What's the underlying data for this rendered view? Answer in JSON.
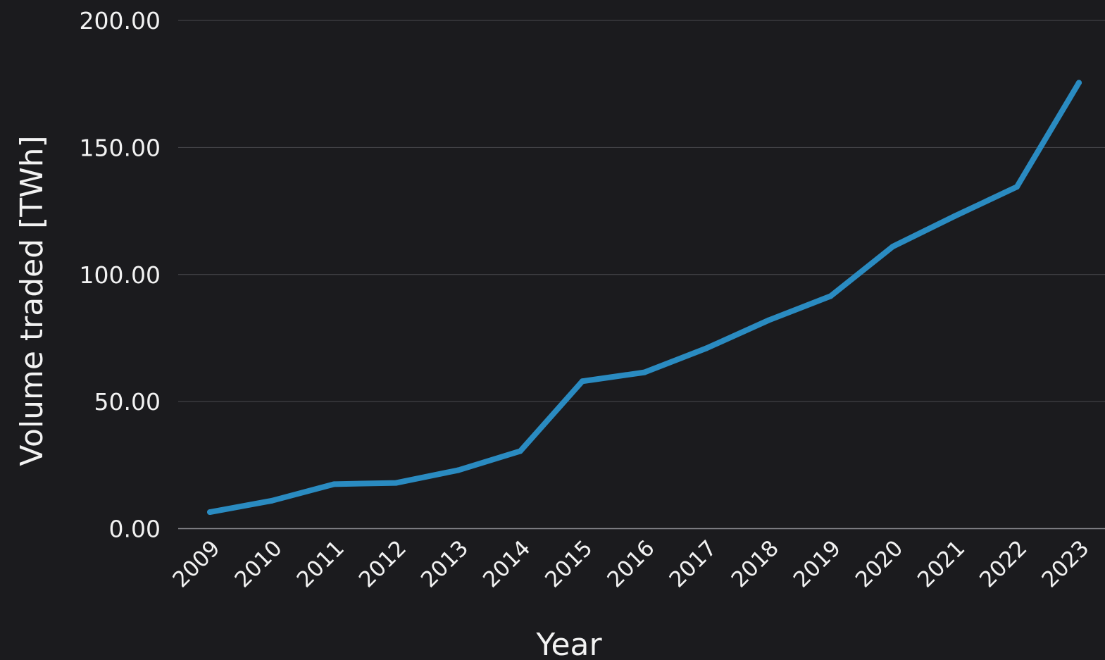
{
  "colors": {
    "background": "#1b1b1e",
    "line": "#2a8bc1",
    "grid": "#4a4a4f",
    "baseline": "#8a8a8f",
    "text": "#f2f2f2"
  },
  "chart_data": {
    "type": "line",
    "title": "",
    "xlabel": "Year",
    "ylabel": "Volume traded [TWh]",
    "x": [
      "2009",
      "2010",
      "2011",
      "2012",
      "2013",
      "2014",
      "2015",
      "2016",
      "2017",
      "2018",
      "2019",
      "2020",
      "2021",
      "2022",
      "2023"
    ],
    "series": [
      {
        "values": [
          6.5,
          11.0,
          17.5,
          18.0,
          23.0,
          30.5,
          58.0,
          61.5,
          71.0,
          82.0,
          91.5,
          111.0,
          123.0,
          134.5,
          175.5
        ]
      }
    ],
    "ylim": [
      0,
      200
    ],
    "yticks": [
      "0.00",
      "50.00",
      "100.00",
      "150.00",
      "200.00"
    ],
    "ytick_values": [
      0,
      50,
      100,
      150,
      200
    ],
    "grid": true,
    "legend": "none"
  }
}
